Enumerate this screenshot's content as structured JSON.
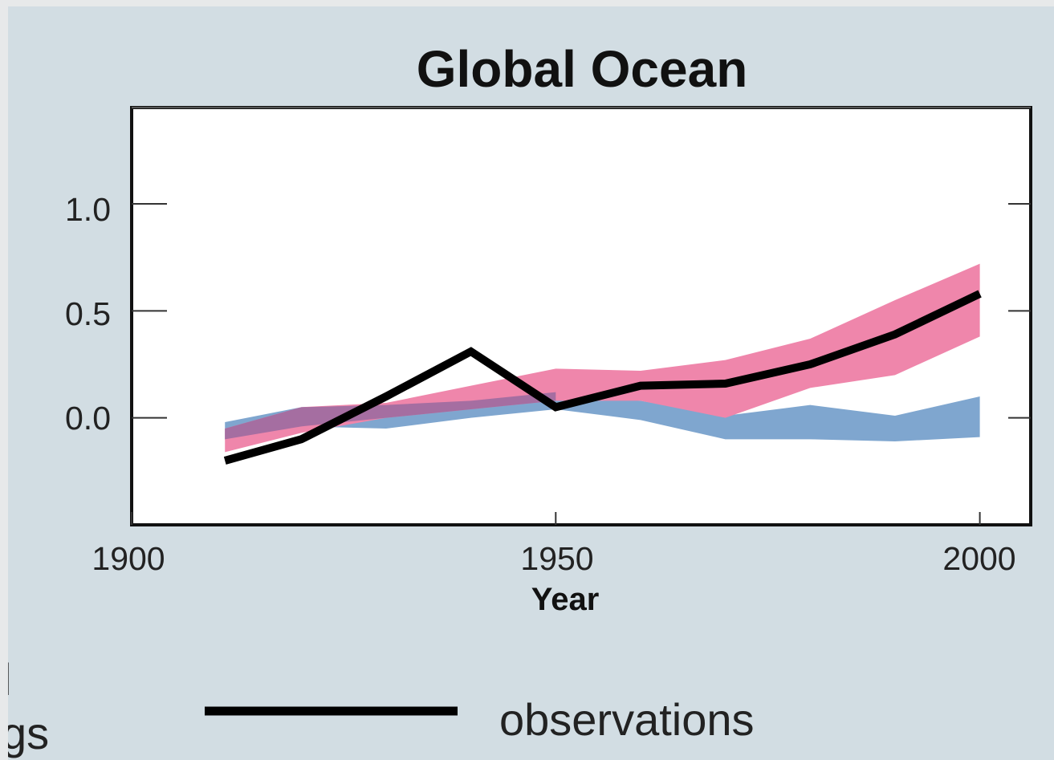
{
  "chart_data": {
    "type": "line",
    "title": "Global Ocean",
    "xlabel": "Year",
    "ylabel": "",
    "xlim": [
      1900,
      2006
    ],
    "ylim": [
      -0.5,
      1.45
    ],
    "x_ticks": [
      1900,
      1950,
      2000
    ],
    "y_ticks": [
      0.0,
      0.5,
      1.0
    ],
    "y_tick_labels": [
      "0.0",
      "0.5",
      "1.0"
    ],
    "grid": false,
    "bands": [
      {
        "color": "#7fa6cf",
        "x": [
          1911,
          1920,
          1930,
          1940,
          1950,
          1960,
          1970,
          1980,
          1990,
          2000
        ],
        "lower": [
          -0.1,
          -0.04,
          -0.05,
          0.0,
          0.04,
          -0.01,
          -0.1,
          -0.1,
          -0.11,
          -0.09
        ],
        "upper": [
          -0.02,
          0.05,
          0.06,
          0.08,
          0.12,
          0.08,
          0.01,
          0.06,
          0.01,
          0.1
        ]
      },
      {
        "color": "#ef86ab",
        "x": [
          1911,
          1920,
          1930,
          1940,
          1950,
          1960,
          1970,
          1980,
          1990,
          2000
        ],
        "lower": [
          -0.16,
          -0.07,
          0.0,
          0.04,
          0.08,
          0.08,
          0.0,
          0.14,
          0.2,
          0.38
        ],
        "upper": [
          -0.05,
          0.05,
          0.07,
          0.15,
          0.23,
          0.22,
          0.27,
          0.37,
          0.55,
          0.72
        ]
      }
    ],
    "overlap_color": "#a56ea1",
    "series": [
      {
        "color": "#000000",
        "x": [
          1911,
          1920,
          1930,
          1940,
          1950,
          1960,
          1970,
          1980,
          1990,
          2000
        ],
        "values": [
          -0.2,
          -0.1,
          0.1,
          0.31,
          0.05,
          0.15,
          0.16,
          0.25,
          0.39,
          0.58
        ]
      }
    ],
    "legend": [
      {
        "label": "observations",
        "color": "#000000",
        "position": "bottom"
      }
    ],
    "cut_off_text": [
      "l",
      "gs"
    ]
  }
}
